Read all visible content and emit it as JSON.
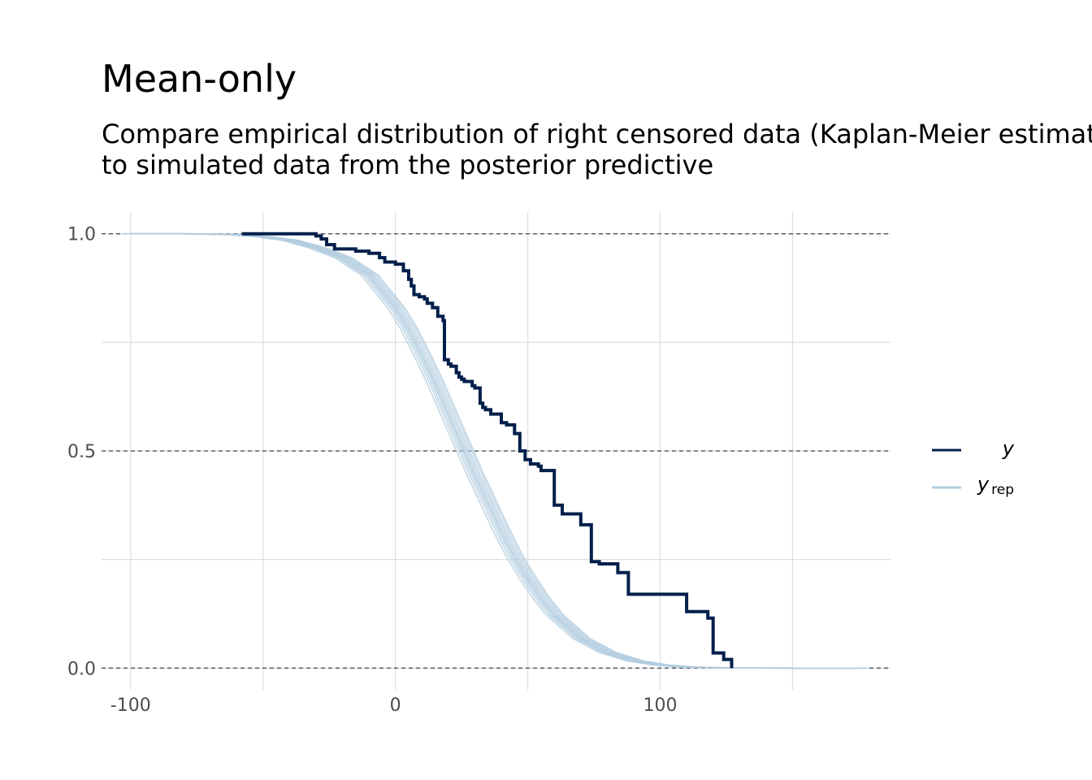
{
  "chart_data": {
    "type": "line",
    "title": "Mean-only",
    "subtitle_lines": [
      "Compare empirical distribution of right censored data (Kaplan-Meier estimate)",
      "to simulated data from the posterior predictive"
    ],
    "xlabel": "",
    "ylabel": "",
    "xlim": [
      -111,
      187
    ],
    "ylim": [
      -0.05,
      1.05
    ],
    "x_ticks": [
      -100,
      0,
      100
    ],
    "x_tick_labels": [
      "-100",
      "0",
      "100"
    ],
    "y_ticks": [
      0.0,
      0.5,
      1.0
    ],
    "y_tick_labels": [
      "0.0",
      "0.5",
      "1.0"
    ],
    "x_grid": [
      -100,
      -50,
      0,
      50,
      100,
      150
    ],
    "y_grid": [
      0.0,
      0.25,
      0.5,
      0.75,
      1.0
    ],
    "reference_lines_y": [
      0.0,
      0.5,
      1.0
    ],
    "grid": true,
    "legend": {
      "position": "right"
    },
    "series": [
      {
        "name": "y",
        "label_sub": "",
        "role": "observed",
        "style": "step",
        "color": "#011f4b",
        "x": [
          -58,
          -30,
          -28,
          -26,
          -23,
          -15,
          -10,
          -6,
          -4,
          0,
          1,
          3,
          5,
          6,
          7,
          9,
          11,
          12,
          14,
          16,
          18,
          18.5,
          20,
          21,
          23,
          24,
          25,
          26,
          29,
          30,
          32,
          33,
          34,
          36,
          40,
          42,
          45,
          47,
          49,
          51,
          54,
          55,
          59,
          60,
          63,
          70,
          74,
          77,
          84,
          88,
          110,
          118,
          120,
          124,
          127
        ],
        "y": [
          1.0,
          0.995,
          0.988,
          0.975,
          0.965,
          0.96,
          0.955,
          0.945,
          0.935,
          0.93,
          0.93,
          0.915,
          0.895,
          0.88,
          0.86,
          0.855,
          0.85,
          0.84,
          0.83,
          0.81,
          0.8,
          0.71,
          0.7,
          0.695,
          0.68,
          0.67,
          0.665,
          0.66,
          0.65,
          0.645,
          0.61,
          0.6,
          0.595,
          0.585,
          0.565,
          0.56,
          0.54,
          0.5,
          0.48,
          0.47,
          0.465,
          0.455,
          0.455,
          0.375,
          0.355,
          0.33,
          0.245,
          0.24,
          0.22,
          0.17,
          0.13,
          0.115,
          0.035,
          0.02,
          0.0
        ]
      },
      {
        "name": "y",
        "label_sub": "rep",
        "role": "replicate",
        "style": "smooth",
        "color": "#b3cde0",
        "x": [
          -100,
          -80,
          -60,
          -50,
          -40,
          -30,
          -20,
          -10,
          0,
          5,
          10,
          15,
          20,
          25,
          30,
          35,
          40,
          45,
          50,
          55,
          60,
          70,
          80,
          90,
          100,
          110,
          120,
          130,
          140,
          150,
          160,
          175
        ],
        "y": [
          1.0,
          1.0,
          0.998,
          0.993,
          0.985,
          0.968,
          0.945,
          0.905,
          0.83,
          0.78,
          0.72,
          0.655,
          0.585,
          0.515,
          0.445,
          0.38,
          0.315,
          0.255,
          0.205,
          0.16,
          0.122,
          0.068,
          0.036,
          0.017,
          0.007,
          0.0025,
          0.001,
          0.0004,
          0.0001,
          0.0,
          0.0,
          0.0
        ]
      }
    ]
  }
}
